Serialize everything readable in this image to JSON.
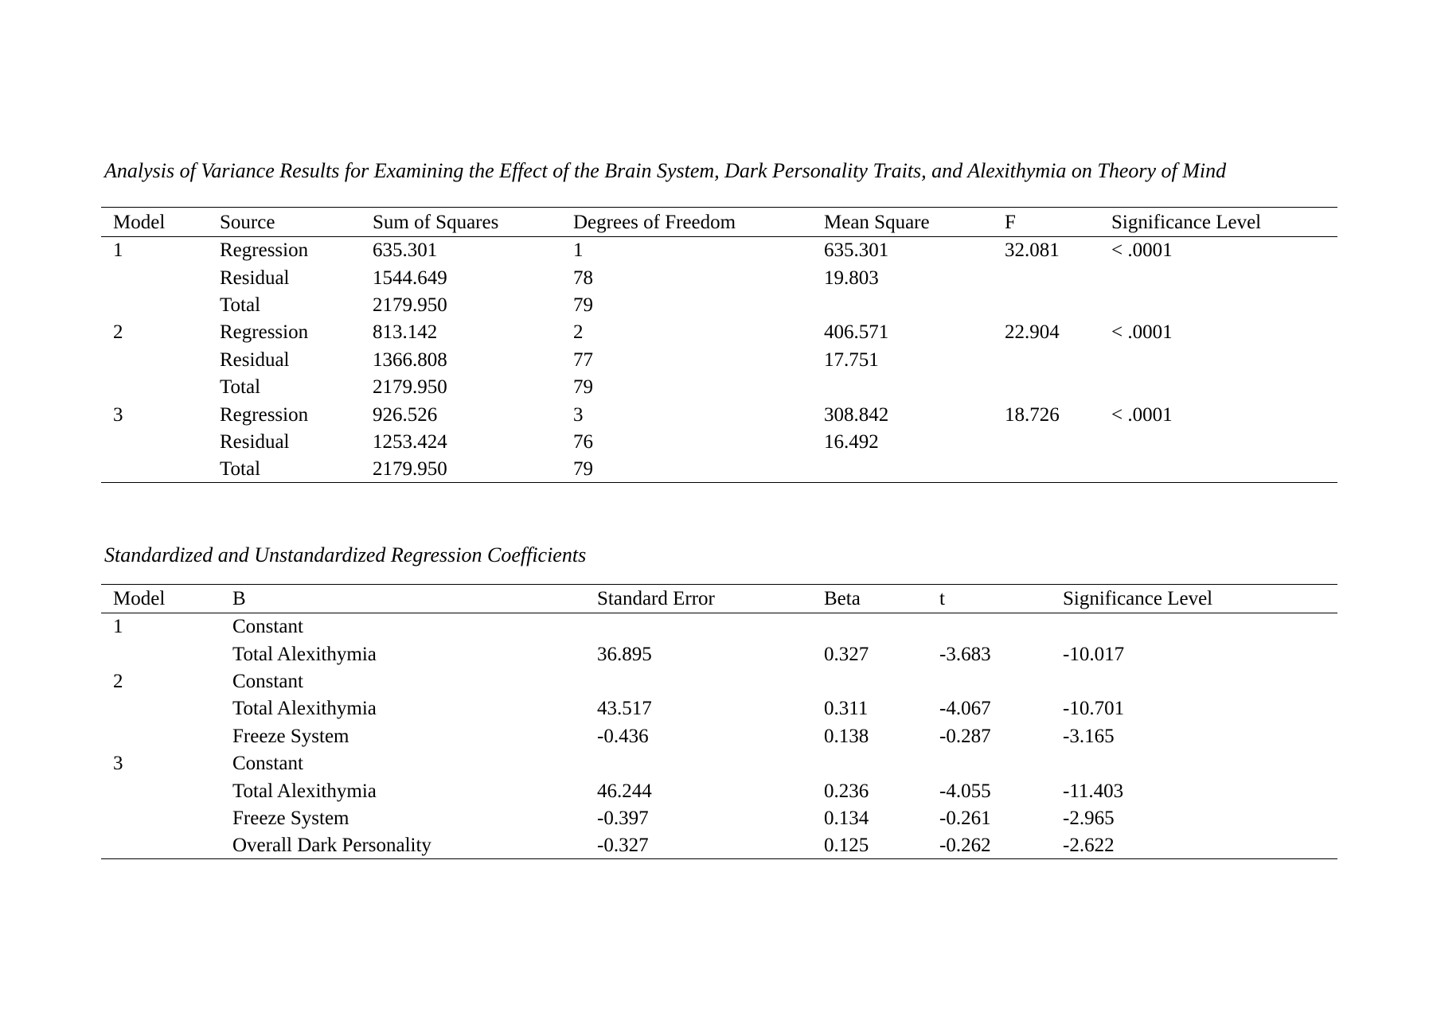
{
  "page": {
    "background_color": "#ffffff",
    "text_color": "#000000"
  },
  "anova_section": {
    "title": "Analysis of Variance Results for Examining the Effect of the Brain System, Dark Personality Traits, and Alexithymia on Theory of Mind",
    "table": {
      "columns": [
        "Model",
        "Source",
        "Sum of Squares",
        "Degrees of Freedom",
        "Mean Square",
        "F",
        "Significance Level"
      ],
      "rows": [
        [
          "1",
          "Regression",
          "635.301",
          "1",
          "635.301",
          "32.081",
          "< .0001"
        ],
        [
          "",
          "Residual",
          "1544.649",
          "78",
          "19.803",
          "",
          ""
        ],
        [
          "",
          "Total",
          "2179.950",
          "79",
          "",
          "",
          ""
        ],
        [
          "2",
          "Regression",
          "813.142",
          "2",
          "406.571",
          "22.904",
          "< .0001"
        ],
        [
          "",
          "Residual",
          "1366.808",
          "77",
          "17.751",
          "",
          ""
        ],
        [
          "",
          "Total",
          "2179.950",
          "79",
          "",
          "",
          ""
        ],
        [
          "3",
          "Regression",
          "926.526",
          "3",
          "308.842",
          "18.726",
          "< .0001"
        ],
        [
          "",
          "Residual",
          "1253.424",
          "76",
          "16.492",
          "",
          ""
        ],
        [
          "",
          "Total",
          "2179.950",
          "79",
          "",
          "",
          ""
        ]
      ]
    }
  },
  "coefficients_section": {
    "title": "Standardized and Unstandardized Regression Coefficients",
    "table": {
      "columns": [
        "Model",
        "B",
        "Standard Error",
        "Beta",
        "t",
        "Significance Level"
      ],
      "rows": [
        [
          "1",
          "Constant",
          "",
          "",
          "",
          ""
        ],
        [
          "",
          "Total Alexithymia",
          "36.895",
          "0.327",
          "-3.683",
          "-10.017"
        ],
        [
          "2",
          "Constant",
          "",
          "",
          "",
          ""
        ],
        [
          "",
          "Total Alexithymia",
          "43.517",
          "0.311",
          "-4.067",
          "-10.701"
        ],
        [
          "",
          "Freeze System",
          "-0.436",
          "0.138",
          "-0.287",
          "-3.165"
        ],
        [
          "3",
          "Constant",
          "",
          "",
          "",
          ""
        ],
        [
          "",
          "Total Alexithymia",
          "46.244",
          "0.236",
          "-4.055",
          "-11.403"
        ],
        [
          "",
          "Freeze System",
          "-0.397",
          "0.134",
          "-0.261",
          "-2.965"
        ],
        [
          "",
          "Overall Dark Personality",
          "-0.327",
          "0.125",
          "-0.262",
          "-2.622"
        ]
      ]
    }
  }
}
